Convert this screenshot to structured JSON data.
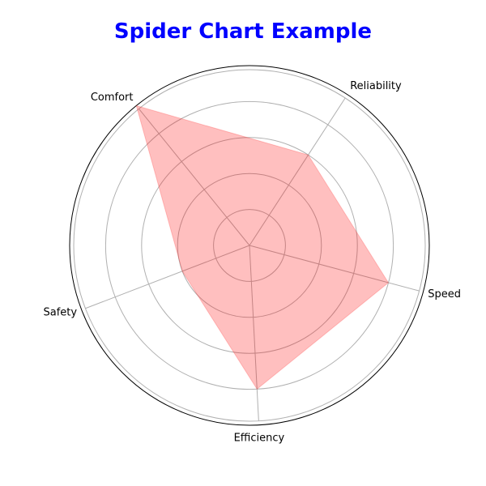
{
  "chart_data": {
    "type": "radar",
    "title": "Spider Chart Example",
    "title_color": "#0000ff",
    "categories": [
      "Speed",
      "Reliability",
      "Comfort",
      "Safety",
      "Efficiency"
    ],
    "series": [
      {
        "values": [
          4,
          3,
          5,
          2,
          4
        ],
        "fill_color": "#ff0000",
        "fill_opacity": 0.25
      }
    ],
    "rlim": [
      0,
      5
    ],
    "r_gridlines": [
      1,
      2,
      3,
      4
    ],
    "grid": true,
    "show_radial_tick_labels": false
  }
}
